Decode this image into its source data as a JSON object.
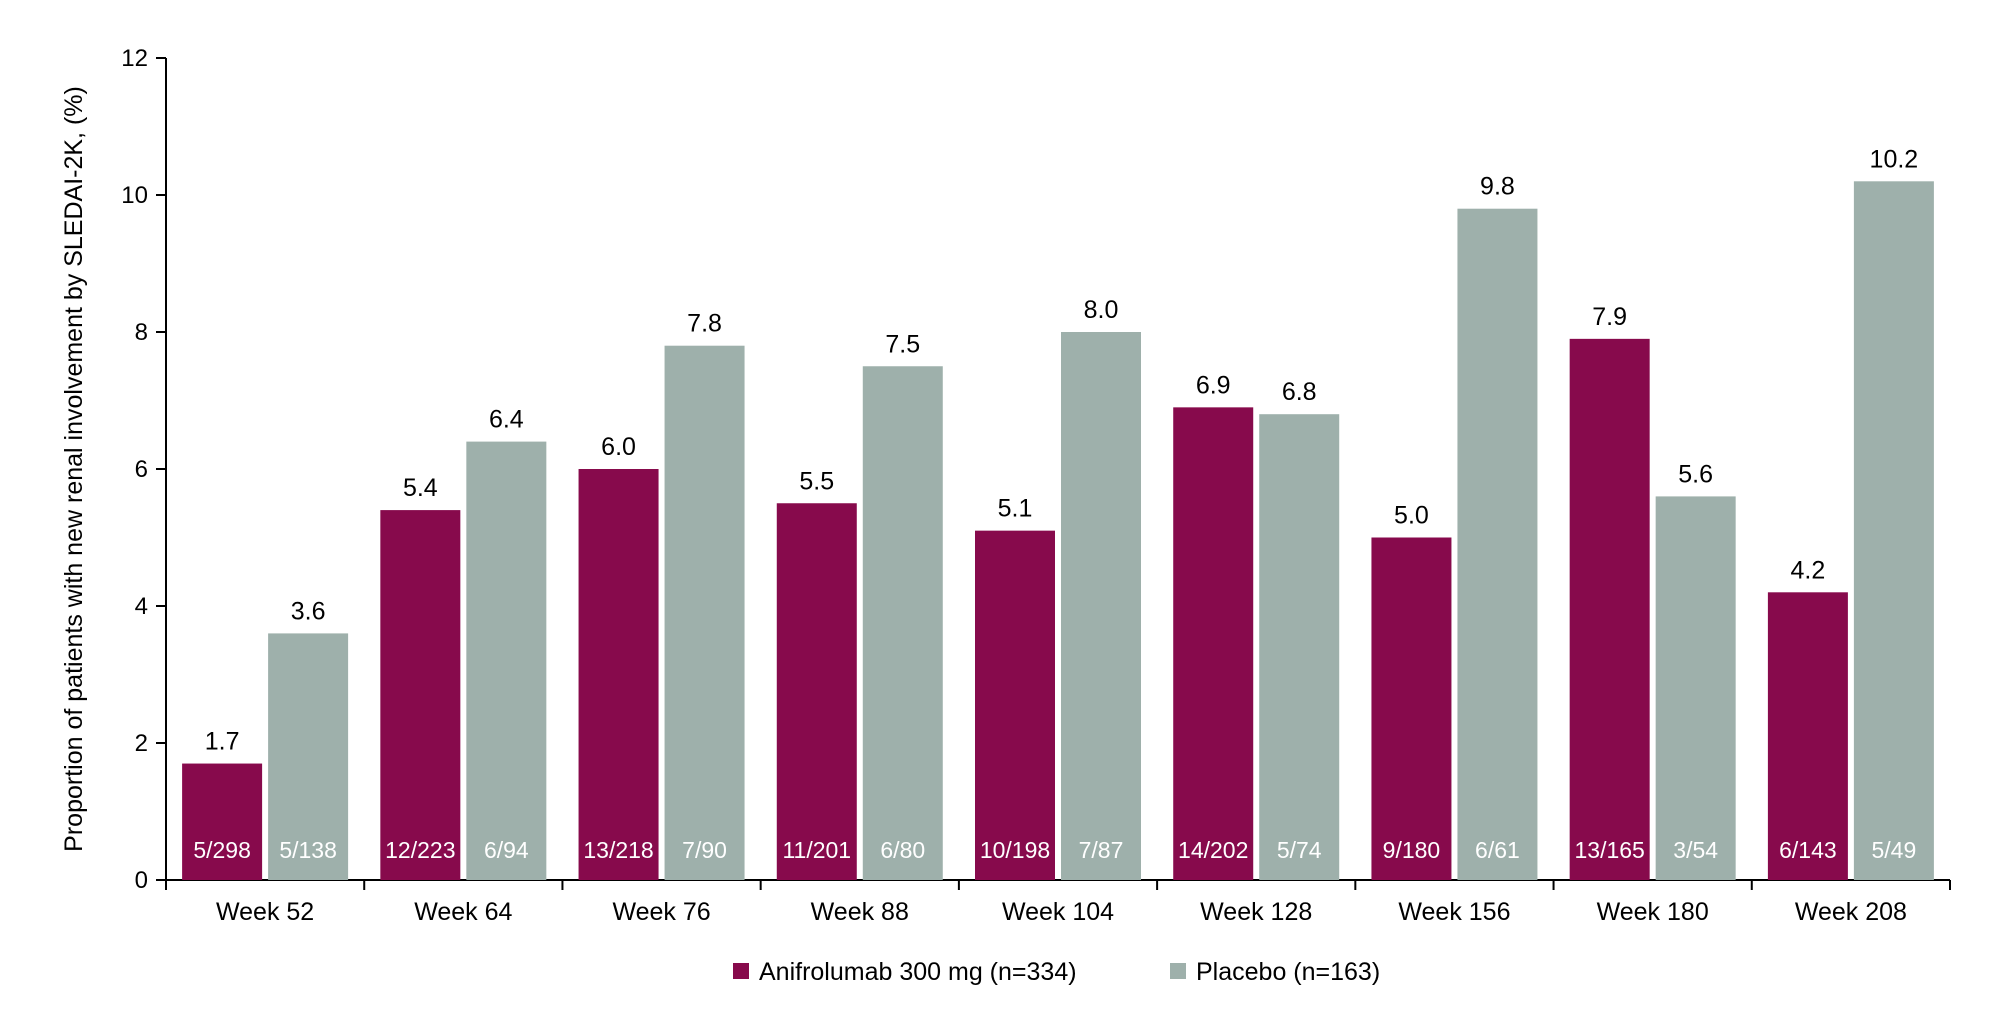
{
  "chart_data": {
    "type": "bar",
    "title": "",
    "xlabel": "",
    "ylabel": "Proportion of patients with new renal involvement by SLEDAI-2K, (%)",
    "ylim": [
      0,
      12
    ],
    "yticks": [
      "0",
      "2",
      "4",
      "6",
      "8",
      "10",
      "12"
    ],
    "grid": false,
    "legend_position": "bottom-center",
    "categories": [
      "Week 52",
      "Week 64",
      "Week 76",
      "Week 88",
      "Week 104",
      "Week 128",
      "Week 156",
      "Week 180",
      "Week 208"
    ],
    "series": [
      {
        "name": "Anifrolumab 300 mg (n=334)",
        "color": "#870a4c",
        "values": [
          1.7,
          5.4,
          6.0,
          5.5,
          5.1,
          6.9,
          5.0,
          7.9,
          4.2
        ],
        "value_labels": [
          "1.7",
          "5.4",
          "6.0",
          "5.5",
          "5.1",
          "6.9",
          "5.0",
          "7.9",
          "4.2"
        ],
        "counts": [
          "5/298",
          "12/223",
          "13/218",
          "11/201",
          "10/198",
          "14/202",
          "9/180",
          "13/165",
          "6/143"
        ]
      },
      {
        "name": "Placebo (n=163)",
        "color": "#9eb0ab",
        "values": [
          3.6,
          6.4,
          7.8,
          7.5,
          8.0,
          6.8,
          9.8,
          5.6,
          10.2
        ],
        "value_labels": [
          "3.6",
          "6.4",
          "7.8",
          "7.5",
          "8.0",
          "6.8",
          "9.8",
          "5.6",
          "10.2"
        ],
        "counts": [
          "5/138",
          "6/94",
          "7/90",
          "6/80",
          "7/87",
          "5/74",
          "6/61",
          "3/54",
          "5/49"
        ]
      }
    ]
  }
}
